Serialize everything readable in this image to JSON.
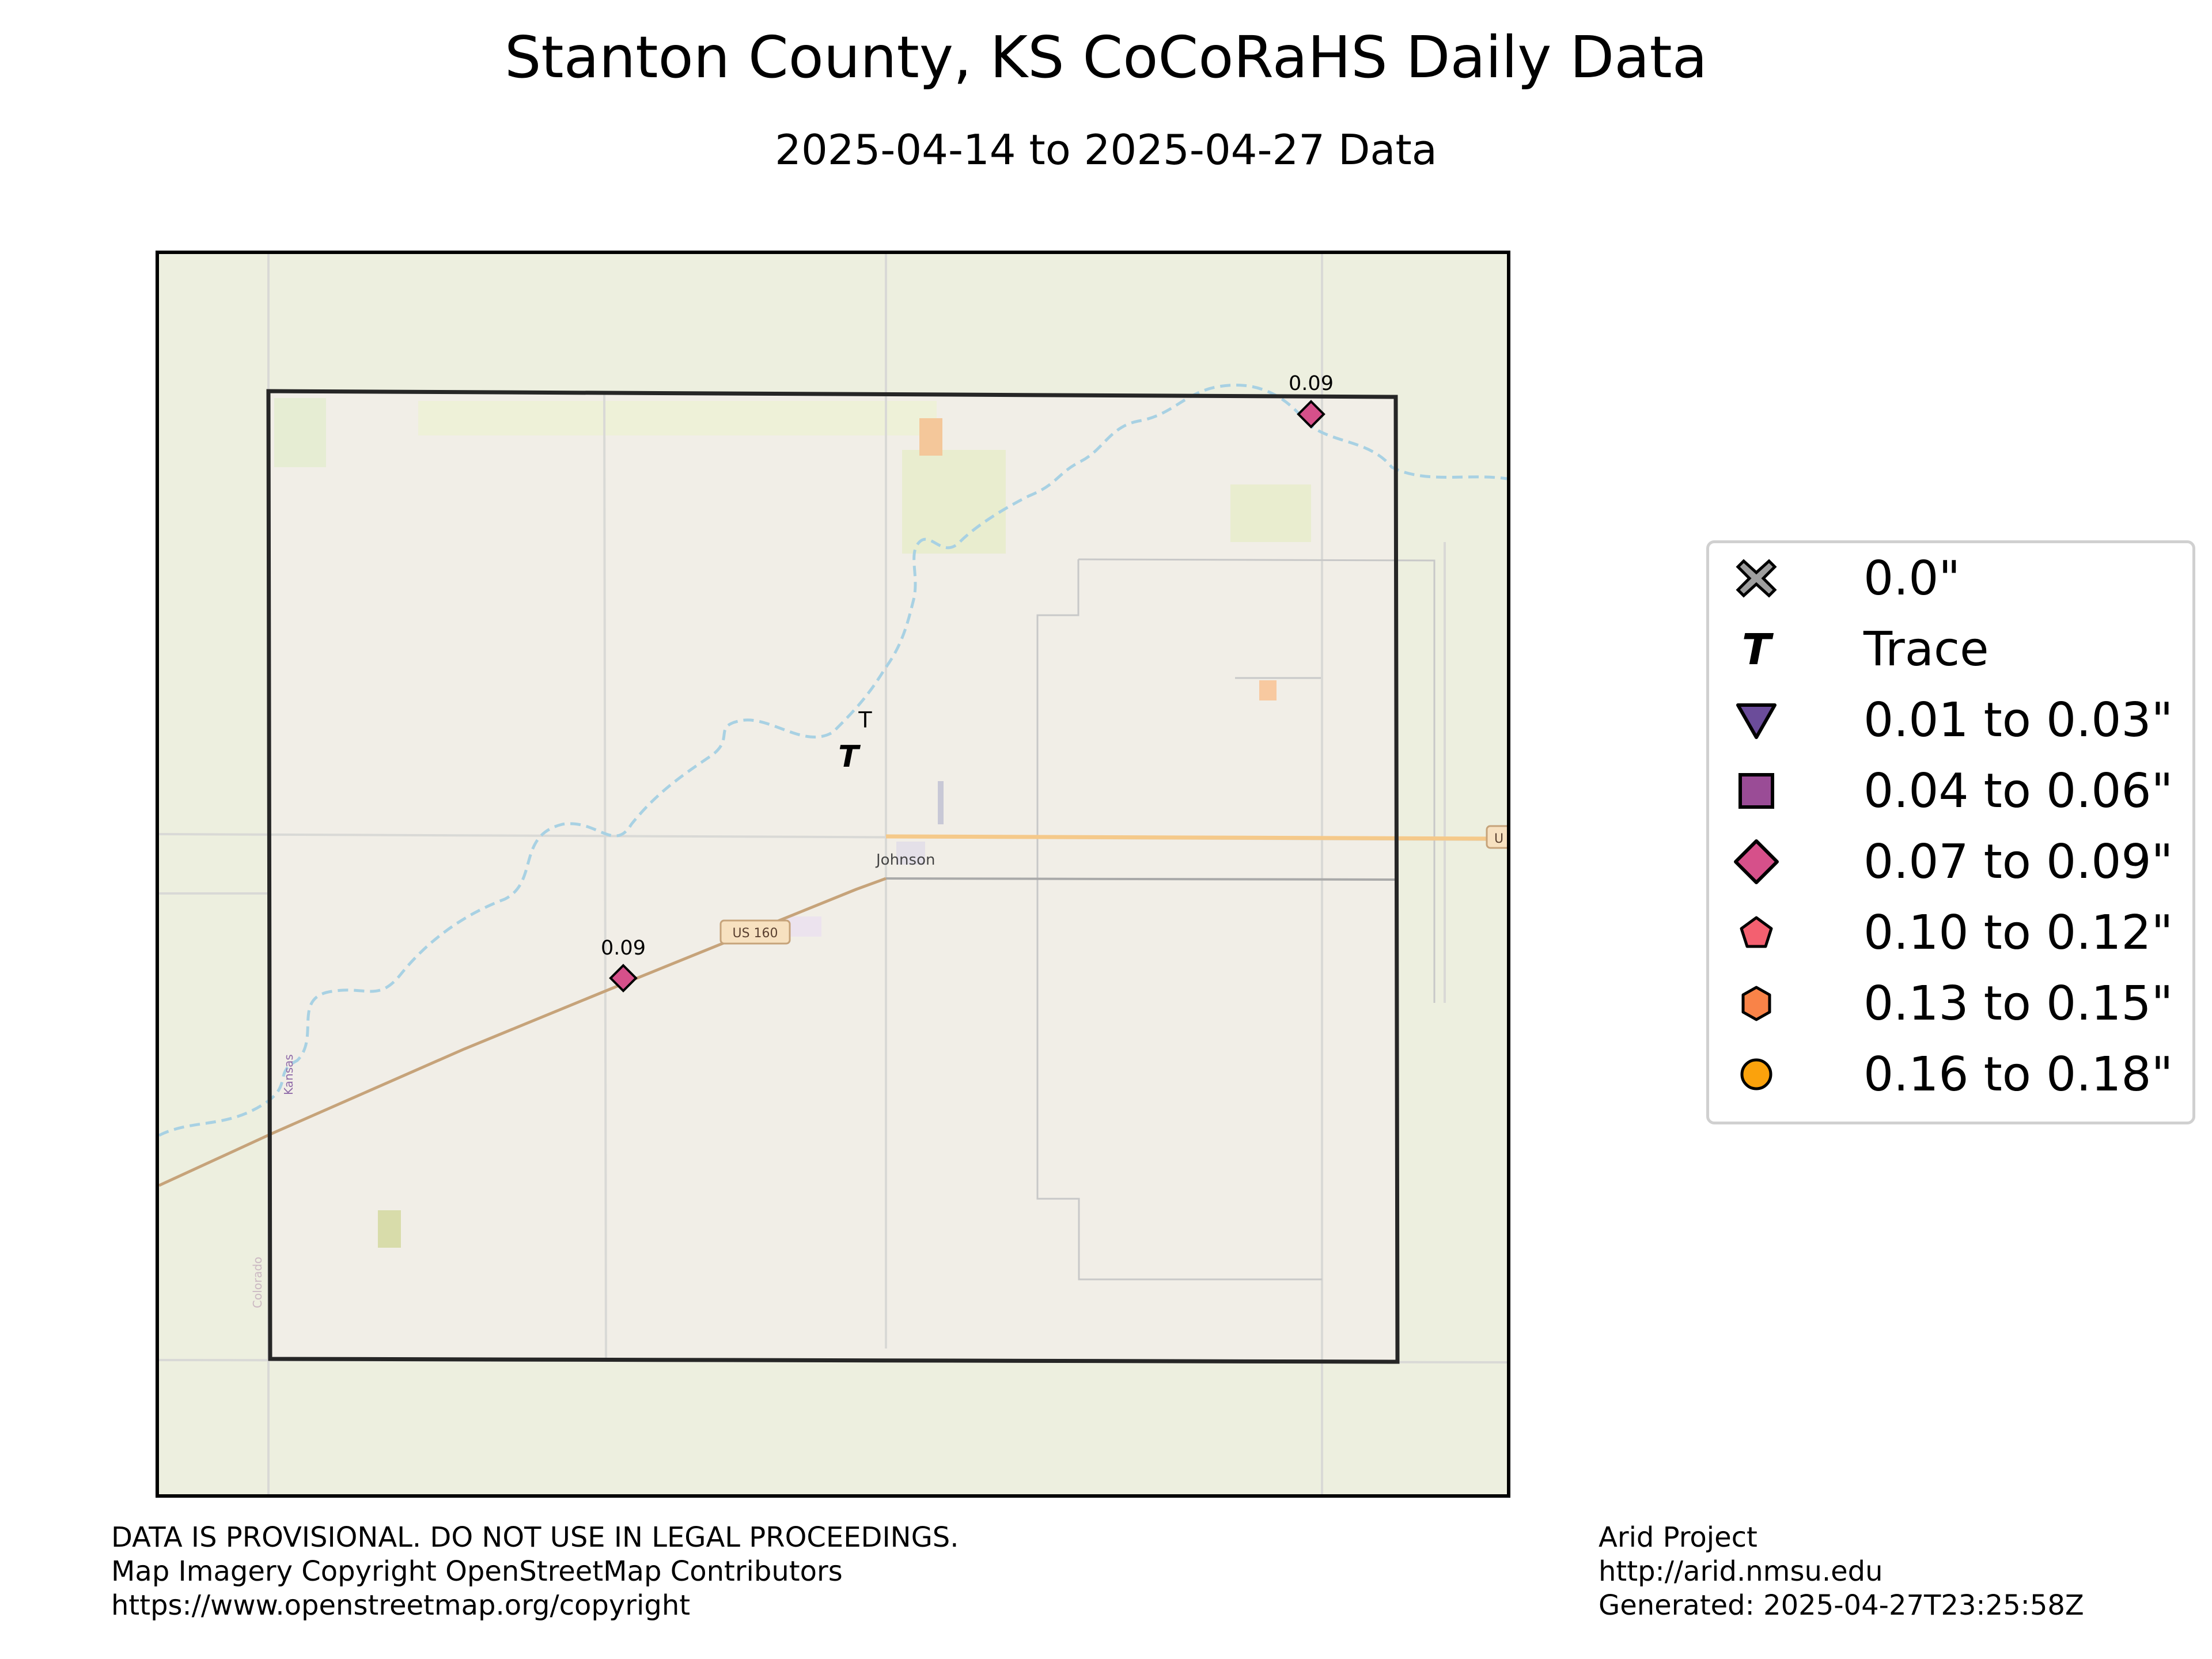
{
  "header": {
    "title": "Stanton County, KS CoCoRaHS Daily Data",
    "subtitle": "2025-04-14 to 2025-04-27 Data"
  },
  "map": {
    "labels": {
      "town": "Johnson",
      "highway_shield": "US 160",
      "edge_shield": "U",
      "state_label": "Kansas",
      "neighbor_label": "Colorado"
    },
    "stations": [
      {
        "label": "0.09",
        "category": "0.07 to 0.09\"",
        "symbol": "diamond"
      },
      {
        "label": "0.09",
        "category": "0.07 to 0.09\"",
        "symbol": "diamond"
      },
      {
        "label": "T",
        "category": "Trace",
        "symbol": "T"
      }
    ],
    "colors": {
      "background": "#edefdf",
      "county_fill": "#f1eee7",
      "river": "#a8d1e3",
      "highway": "#c6a37a",
      "state_road": "#f5c98a"
    }
  },
  "legend": {
    "items": [
      {
        "label": "0.0\"",
        "symbol": "x-cross-icon",
        "color": "#9e9e9e"
      },
      {
        "label": "Trace",
        "symbol": "t-letter-icon",
        "color": "#000000"
      },
      {
        "label": "0.01 to 0.03\"",
        "symbol": "triangle-down-icon",
        "color": "#6b4c9a"
      },
      {
        "label": "0.04 to 0.06\"",
        "symbol": "square-icon",
        "color": "#9a4c96"
      },
      {
        "label": "0.07 to 0.09\"",
        "symbol": "diamond-icon",
        "color": "#d6508a"
      },
      {
        "label": "0.10 to 0.12\"",
        "symbol": "pentagon-icon",
        "color": "#f36070"
      },
      {
        "label": "0.13 to 0.15\"",
        "symbol": "hexagon-icon",
        "color": "#f98348"
      },
      {
        "label": "0.16 to 0.18\"",
        "symbol": "circle-icon",
        "color": "#fba20c"
      }
    ]
  },
  "footer": {
    "left": [
      "DATA IS PROVISIONAL. DO NOT USE IN LEGAL PROCEEDINGS.",
      "Map Imagery Copyright OpenStreetMap Contributors",
      "https://www.openstreetmap.org/copyright"
    ],
    "right": [
      "Arid Project",
      "http://arid.nmsu.edu",
      "Generated: 2025-04-27T23:25:58Z"
    ]
  }
}
